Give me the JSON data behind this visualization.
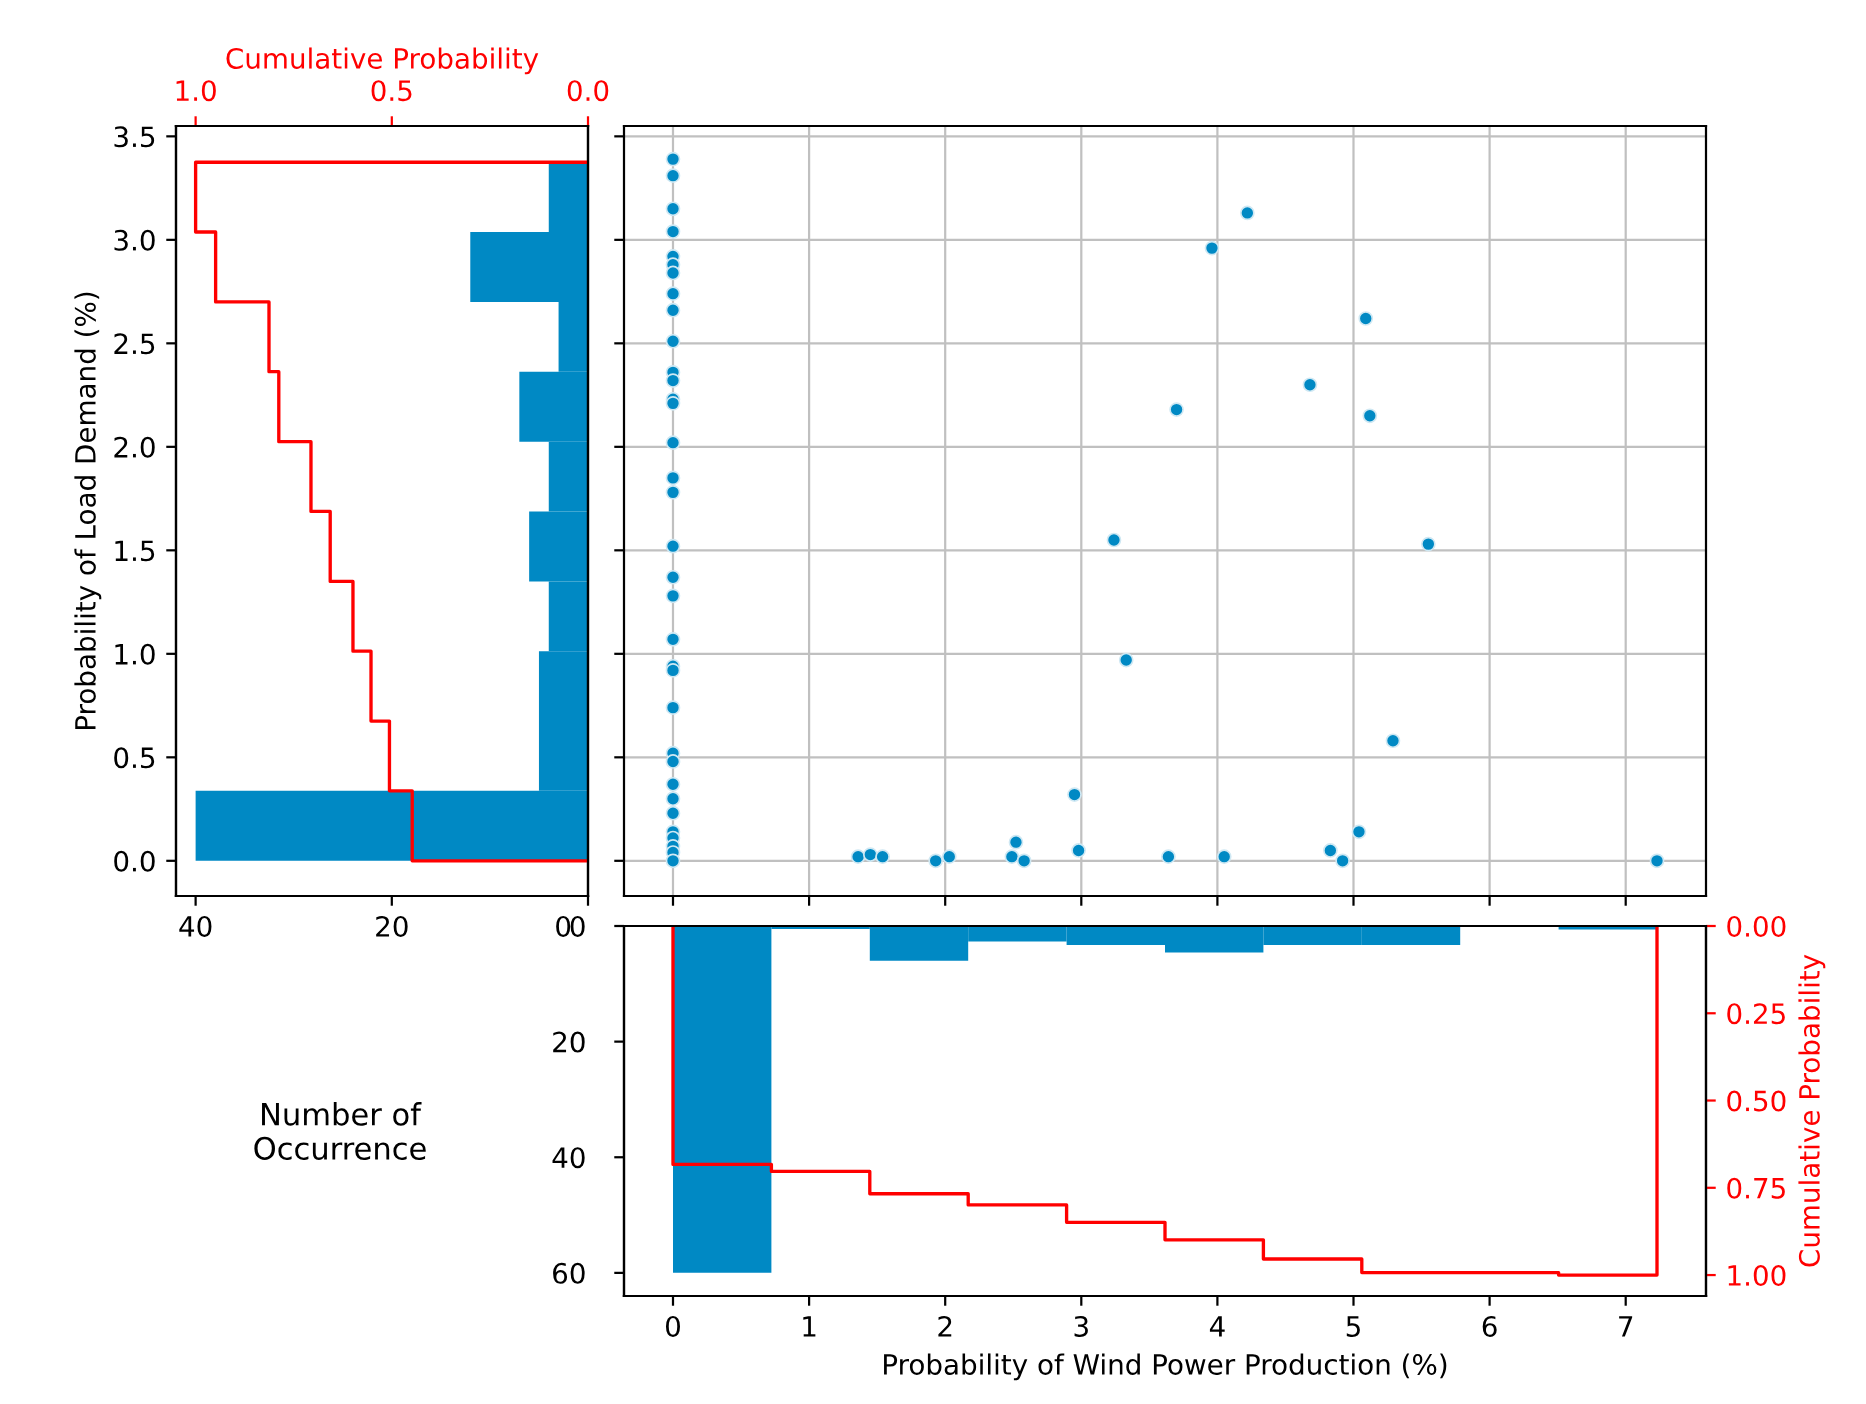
{
  "chart_data": [
    {
      "type": "histogram",
      "orientation": "horizontal",
      "ylabel": "Probability of Load Demand (%)",
      "x2label": "Cumulative Probability",
      "annotations": [
        "Number of\nOccurrence"
      ],
      "bins": [
        0,
        0.338,
        0.675,
        1.013,
        1.35,
        1.688,
        2.025,
        2.363,
        2.7,
        3.038,
        3.375
      ],
      "series": [
        {
          "type": "histogram",
          "color": "#0089c4",
          "values": [
            40,
            5,
            5,
            4,
            6,
            4,
            7,
            3,
            12,
            4
          ]
        },
        {
          "type": "line",
          "axis": "x2",
          "color": "#ff0000",
          "x": [
            0,
            0,
            0.338,
            0.338,
            0.675,
            0.675,
            1.013,
            1.013,
            1.35,
            1.35,
            1.688,
            1.688,
            2.025,
            2.025,
            2.363,
            2.363,
            2.7,
            2.7,
            3.038,
            3.038,
            3.375,
            3.375
          ],
          "values": [
            0,
            0.448,
            0.448,
            0.506,
            0.506,
            0.553,
            0.553,
            0.599,
            0.599,
            0.657,
            0.657,
            0.706,
            0.706,
            0.788,
            0.788,
            0.813,
            0.813,
            0.949,
            0.949,
            1.0,
            1.0,
            0
          ]
        }
      ],
      "xlim": [
        42,
        0
      ],
      "xticks": [
        40,
        20,
        0
      ],
      "x2lim": [
        1.05,
        0
      ],
      "x2ticks": [
        {
          "value": 1.0,
          "label": "1.0"
        },
        0.5,
        {
          "value": 0,
          "label": "0.0"
        }
      ],
      "ylim": [
        -0.17,
        3.55
      ],
      "yticks": [
        {
          "value": 0,
          "label": "0.0"
        },
        0.5,
        {
          "value": 1,
          "label": "1.0"
        },
        1.5,
        {
          "value": 2,
          "label": "2.0"
        },
        2.5,
        {
          "value": 3,
          "label": "3.0"
        },
        3.5
      ],
      "grid": false
    },
    {
      "type": "scatter",
      "marker": "circle",
      "grid": true,
      "tick_labels": false,
      "series": [
        {
          "color": "#0089c4",
          "x": [
            0,
            0,
            0,
            0,
            0,
            0,
            0,
            0,
            0,
            0,
            0,
            0,
            0,
            0,
            0,
            0,
            0,
            0,
            0,
            0,
            0,
            0,
            0,
            0,
            0,
            0,
            0,
            0,
            0,
            0,
            0,
            0,
            0,
            0,
            4.22,
            3.96,
            5.09,
            4.68,
            3.7,
            5.12,
            3.24,
            5.55,
            3.33,
            5.29,
            2.95,
            2.52,
            5.04,
            2.98,
            4.83,
            4.92,
            3.64,
            4.05,
            1.36,
            1.45,
            1.54,
            1.93,
            2.03,
            2.49,
            2.58,
            7.23
          ],
          "values": [
            3.39,
            3.31,
            3.15,
            3.04,
            2.92,
            2.88,
            2.84,
            2.74,
            2.66,
            2.51,
            2.36,
            2.32,
            2.23,
            2.21,
            2.02,
            1.85,
            1.78,
            1.52,
            1.37,
            1.28,
            1.07,
            0.94,
            0.92,
            0.74,
            0.52,
            0.48,
            0.37,
            0.3,
            0.23,
            0.14,
            0.11,
            0.07,
            0.04,
            0.0,
            3.13,
            2.96,
            2.62,
            2.3,
            2.18,
            2.15,
            1.55,
            1.53,
            0.97,
            0.58,
            0.32,
            0.09,
            0.14,
            0.05,
            0.05,
            0.0,
            0.02,
            0.02,
            0.02,
            0.03,
            0.02,
            0.0,
            0.02,
            0.02,
            0.0,
            0.0
          ]
        }
      ],
      "xlim": [
        -0.36,
        7.59
      ],
      "xticks": [
        0,
        1,
        2,
        3,
        4,
        5,
        6,
        7
      ],
      "ylim": [
        -0.17,
        3.55
      ],
      "yticks": [
        0,
        0.5,
        1,
        1.5,
        2,
        2.5,
        3,
        3.5
      ]
    },
    {
      "type": "histogram",
      "xlabel": "Probability of Wind Power Production (%)",
      "y2label": "Cumulative Probability",
      "bins": [
        0,
        0.723,
        1.446,
        2.169,
        2.892,
        3.615,
        4.338,
        5.061,
        5.784,
        6.507,
        7.23
      ],
      "series": [
        {
          "type": "histogram",
          "color": "#0089c4",
          "values": [
            60,
            0.5,
            6,
            2.7,
            3.3,
            4.6,
            3.3,
            3.3,
            0,
            0.6
          ]
        },
        {
          "type": "line",
          "axis": "y2",
          "color": "#ff0000",
          "x": [
            0,
            0,
            0.723,
            0.723,
            1.446,
            1.446,
            2.169,
            2.169,
            2.892,
            2.892,
            3.615,
            3.615,
            4.338,
            4.338,
            5.061,
            5.061,
            5.784,
            5.784,
            6.507,
            6.507,
            7.23,
            7.23
          ],
          "values": [
            0,
            0.683,
            0.683,
            0.703,
            0.703,
            0.767,
            0.767,
            0.799,
            0.799,
            0.849,
            0.849,
            0.899,
            0.899,
            0.954,
            0.954,
            0.993,
            0.993,
            0.993,
            0.993,
            1.0,
            1.0,
            0
          ]
        }
      ],
      "xlim": [
        -0.36,
        7.59
      ],
      "xticks": [
        0,
        1,
        2,
        3,
        4,
        5,
        6,
        7
      ],
      "ylim": [
        64,
        0
      ],
      "yticks": [
        0,
        20,
        40,
        60
      ],
      "y2lim": [
        1.06,
        0
      ],
      "y2ticks": [
        {
          "value": 0,
          "label": "0.00"
        },
        0.25,
        {
          "value": 0.5,
          "label": "0.50"
        },
        0.75,
        {
          "value": 1,
          "label": "1.00"
        }
      ],
      "grid": false
    }
  ]
}
